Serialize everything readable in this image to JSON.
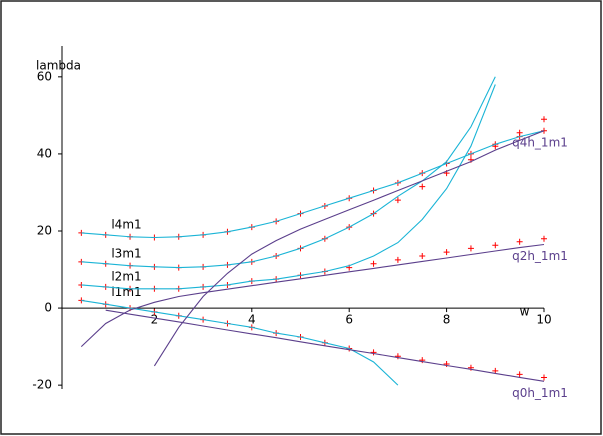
{
  "chart_data": {
    "type": "line",
    "x_label": "w",
    "y_label": "lambda",
    "x": [
      0.5,
      1,
      1.5,
      2,
      2.5,
      3,
      3.5,
      4,
      4.5,
      5,
      5.5,
      6,
      6.5,
      7,
      7.5,
      8,
      8.5,
      9,
      9.5,
      10
    ],
    "xlim": [
      0,
      10
    ],
    "ylim": [
      -21,
      68
    ],
    "xticks": [
      2,
      4,
      6,
      8,
      10
    ],
    "yticks": [
      -20,
      0,
      20,
      40,
      60
    ],
    "series": [
      {
        "color": "#ff0000",
        "marker": "+",
        "values": [
          2,
          1,
          0,
          -1,
          -2,
          -3,
          -4,
          -5,
          -6.5,
          -7.5,
          -9,
          -10.5,
          -11.5,
          -12.5,
          -13.5,
          -14.5,
          -15.5,
          -16.3,
          -17.2,
          -18
        ]
      },
      {
        "color": "#ff0000",
        "marker": "+",
        "values": [
          6,
          5.5,
          5,
          5,
          5,
          5.5,
          6,
          7,
          7.5,
          8.5,
          9.5,
          10.5,
          11.5,
          12.5,
          13.5,
          14.5,
          15.5,
          16.3,
          17.2,
          18
        ]
      },
      {
        "color": "#ff0000",
        "marker": "+",
        "values": [
          12,
          11.5,
          11,
          10.7,
          10.5,
          10.7,
          11.2,
          12,
          13.5,
          15.5,
          18,
          21,
          24.5,
          28,
          31.5,
          35,
          38.5,
          42,
          45.5,
          49
        ]
      },
      {
        "color": "#ff0000",
        "marker": "+",
        "values": [
          19.5,
          19,
          18.5,
          18.3,
          18.5,
          19,
          19.8,
          21,
          22.5,
          24.5,
          26.5,
          28.5,
          30.5,
          32.5,
          35,
          37.5,
          40,
          42.5,
          44.5,
          46
        ]
      },
      {
        "name": "l1m1",
        "color": "#1ab4d6",
        "label_at": "start",
        "values": [
          2,
          1,
          0,
          -1,
          -2,
          -3,
          -4,
          -5,
          -6.5,
          -7.5,
          -9,
          -10.5,
          -14,
          -20,
          null,
          null,
          null,
          null,
          null,
          null
        ]
      },
      {
        "name": "l2m1",
        "color": "#1ab4d6",
        "label_at": "start",
        "values": [
          6,
          5.5,
          5,
          5,
          5,
          5.5,
          6,
          7,
          7.5,
          8.5,
          9.5,
          11,
          13.5,
          17,
          23,
          31,
          42,
          58,
          null,
          null
        ]
      },
      {
        "name": "l3m1",
        "color": "#1ab4d6",
        "label_at": "start",
        "values": [
          12,
          11.5,
          11,
          10.7,
          10.5,
          10.7,
          11.2,
          12,
          13.5,
          15.5,
          18,
          21,
          24.5,
          29,
          33,
          38,
          47,
          60,
          null,
          null
        ]
      },
      {
        "name": "l4m1",
        "color": "#1ab4d6",
        "label_at": "start",
        "values": [
          19.5,
          19,
          18.5,
          18.3,
          18.5,
          19,
          19.8,
          21,
          22.5,
          24.5,
          26.5,
          28.5,
          30.5,
          32.5,
          35,
          37.5,
          40,
          42.5,
          44.5,
          46
        ]
      },
      {
        "name": "q0h_1m1",
        "color": "#5b3f8c",
        "label_at": "end",
        "values": [
          null,
          -0.55,
          -1.6,
          -2.6,
          -3.6,
          -4.65,
          -5.7,
          -6.7,
          -7.7,
          -8.75,
          -9.8,
          -10.8,
          -11.8,
          -12.85,
          -13.9,
          -14.9,
          -15.9,
          -16.95,
          -18,
          -19
        ]
      },
      {
        "name": "q2h_1m1",
        "color": "#5b3f8c",
        "label_at": "end",
        "values": [
          -10,
          -4,
          -0.5,
          1.5,
          3,
          4,
          4.9,
          5.8,
          6.7,
          7.6,
          8.5,
          9.4,
          10.3,
          11.2,
          12.1,
          13,
          13.9,
          14.8,
          15.7,
          16.5
        ]
      },
      {
        "name": "q4h_1m1",
        "color": "#5b3f8c",
        "label_at": "end",
        "values": [
          null,
          null,
          null,
          -15,
          -5,
          3,
          9,
          14,
          17.5,
          20.5,
          23,
          25.5,
          28,
          30.5,
          33,
          35.5,
          38,
          41,
          43.5,
          46
        ]
      }
    ]
  }
}
